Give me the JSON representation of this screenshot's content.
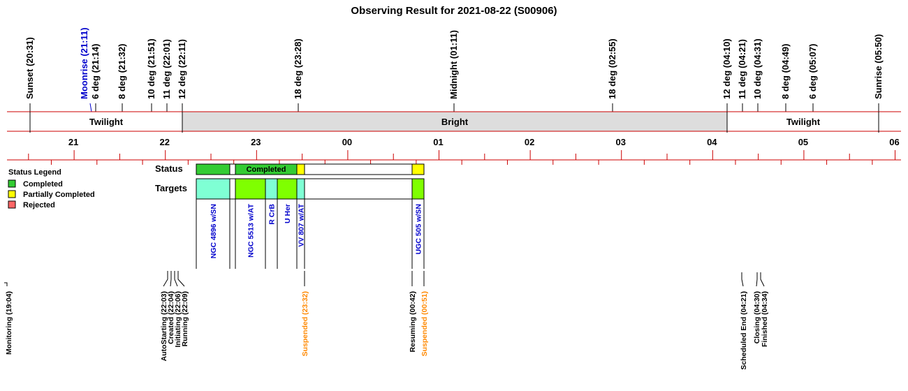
{
  "title": "Observing Result for 2021-08-22 (S00906)",
  "colors": {
    "line": "#cc0000",
    "bright_fill": "#dddddd",
    "completed": "#33cc33",
    "partial": "#ffff00",
    "rejected": "#ff6666",
    "target_cyan": "#7fffd4",
    "target_green": "#7fff00",
    "blue_text": "#0000cc",
    "orange_text": "#ff8800"
  },
  "events": [
    {
      "label": "Sunset (20:31)",
      "color": "#000000"
    },
    {
      "label": "Moonrise (21:11)",
      "color": "#0000cc"
    },
    {
      "label": "6 deg (21:14)",
      "color": "#000000"
    },
    {
      "label": "8 deg (21:32)",
      "color": "#000000"
    },
    {
      "label": "10 deg (21:51)",
      "color": "#000000"
    },
    {
      "label": "11 deg (22:01)",
      "color": "#000000"
    },
    {
      "label": "12 deg (22:11)",
      "color": "#000000"
    },
    {
      "label": "18 deg (23:28)",
      "color": "#000000"
    },
    {
      "label": "Midnight (01:11)",
      "color": "#000000"
    },
    {
      "label": "18 deg (02:55)",
      "color": "#000000"
    },
    {
      "label": "12 deg (04:10)",
      "color": "#000000"
    },
    {
      "label": "11 deg (04:21)",
      "color": "#000000"
    },
    {
      "label": "10 deg (04:31)",
      "color": "#000000"
    },
    {
      "label": "8 deg (04:49)",
      "color": "#000000"
    },
    {
      "label": "6 deg (05:07)",
      "color": "#000000"
    },
    {
      "label": "Sunrise (05:50)",
      "color": "#000000"
    }
  ],
  "periods": [
    {
      "label": "Twilight"
    },
    {
      "label": "Bright"
    },
    {
      "label": "Twilight"
    }
  ],
  "hour_labels": [
    "21",
    "22",
    "23",
    "00",
    "01",
    "02",
    "03",
    "04",
    "05",
    "06"
  ],
  "legend": {
    "title": "Status Legend",
    "items": [
      {
        "label": "Completed",
        "color": "#33cc33"
      },
      {
        "label": "Partially Completed",
        "color": "#ffff00"
      },
      {
        "label": "Rejected",
        "color": "#ff6666"
      }
    ]
  },
  "row_labels": {
    "status": "Status",
    "targets": "Targets"
  },
  "status_segments": [
    {
      "label": "",
      "color": "#33cc33"
    },
    {
      "label": "",
      "color": "#ffffff"
    },
    {
      "label": "Completed",
      "color": "#33cc33"
    },
    {
      "label": "",
      "color": "#ffff00"
    },
    {
      "label": "",
      "color": "#ffffff"
    },
    {
      "label": "",
      "color": "#ffff00"
    }
  ],
  "targets": [
    {
      "label": "NGC 4896  w/SN",
      "color": "#7fffd4"
    },
    {
      "label": "",
      "color": "#ffffff"
    },
    {
      "label": "NGC 5513  w/AT",
      "color": "#7fff00"
    },
    {
      "label": "R CrB",
      "color": "#7fffd4"
    },
    {
      "label": "U Her",
      "color": "#7fff00"
    },
    {
      "label": "VV 807  w/AT",
      "color": "#7fffd4"
    },
    {
      "label": "",
      "color": "#ffffff"
    },
    {
      "label": "UGC 505  w/SN",
      "color": "#7fff00"
    }
  ],
  "logs": [
    {
      "label": "Monitoring (19:04)",
      "color": "#000000"
    },
    {
      "label": "AutoStarting (22:03)",
      "color": "#000000"
    },
    {
      "label": "Created (22:04)",
      "color": "#000000"
    },
    {
      "label": "Initiating (22:06)",
      "color": "#000000"
    },
    {
      "label": "Running (22:09)",
      "color": "#000000"
    },
    {
      "label": "Suspended (23:32)",
      "color": "#ff8800"
    },
    {
      "label": "Resuming (00:42)",
      "color": "#000000"
    },
    {
      "label": "Suspended (00:51)",
      "color": "#ff8800"
    },
    {
      "label": "Scheduled End (04:21)",
      "color": "#000000"
    },
    {
      "label": "Closing (04:30)",
      "color": "#000000"
    },
    {
      "label": "Finished (04:34)",
      "color": "#000000"
    }
  ]
}
